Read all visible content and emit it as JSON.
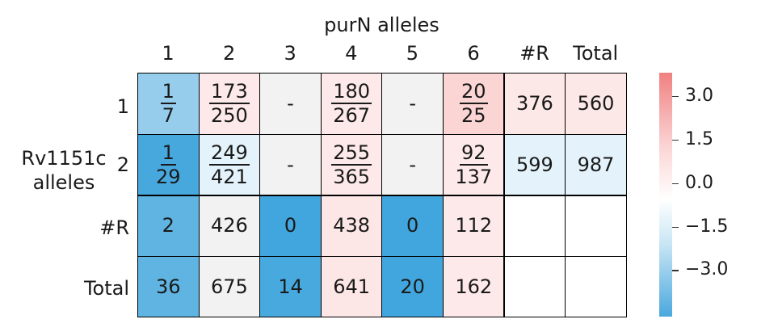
{
  "chart_data": {
    "type": "heatmap",
    "title": "purN alleles",
    "ylabel": "Rv1151c alleles",
    "columns": [
      "1",
      "2",
      "3",
      "4",
      "5",
      "6",
      "#R",
      "Total"
    ],
    "rows": [
      "1",
      "2",
      "#R",
      "Total"
    ],
    "cells": [
      [
        {
          "num": "1",
          "den": "7",
          "color": "#96cdec"
        },
        {
          "num": "173",
          "den": "250",
          "color": "#fde9e9"
        },
        {
          "text": "-",
          "color": "#f2f2f2"
        },
        {
          "num": "180",
          "den": "267",
          "color": "#fde9e9"
        },
        {
          "text": "-",
          "color": "#f2f2f2"
        },
        {
          "num": "20",
          "den": "25",
          "color": "#fbd4d4"
        },
        {
          "text": "376",
          "color": "#fde8e8"
        },
        {
          "text": "560",
          "color": "#fde8e8"
        }
      ],
      [
        {
          "num": "1",
          "den": "29",
          "color": "#47a8de"
        },
        {
          "num": "249",
          "den": "421",
          "color": "#e4f3fb"
        },
        {
          "text": "-",
          "color": "#f2f2f2"
        },
        {
          "num": "255",
          "den": "365",
          "color": "#fde9e9"
        },
        {
          "text": "-",
          "color": "#f2f2f2"
        },
        {
          "num": "92",
          "den": "137",
          "color": "#fde9e9"
        },
        {
          "text": "599",
          "color": "#e4f3fb"
        },
        {
          "text": "987",
          "color": "#e4f3fb"
        }
      ],
      [
        {
          "text": "2",
          "color": "#60b4e2"
        },
        {
          "text": "426",
          "color": "#f2f2f2"
        },
        {
          "text": "0",
          "color": "#42a6de"
        },
        {
          "text": "438",
          "color": "#fde6e6"
        },
        {
          "text": "0",
          "color": "#42a6de"
        },
        {
          "text": "112",
          "color": "#fde9e9"
        },
        {
          "text": "",
          "color": "#ffffff"
        },
        {
          "text": "",
          "color": "#ffffff"
        }
      ],
      [
        {
          "text": "36",
          "color": "#60b4e2"
        },
        {
          "text": "675",
          "color": "#f2f2f2"
        },
        {
          "text": "14",
          "color": "#48a9de"
        },
        {
          "text": "641",
          "color": "#fde6e6"
        },
        {
          "text": "20",
          "color": "#42a6de"
        },
        {
          "text": "162",
          "color": "#fde9e9"
        },
        {
          "text": "",
          "color": "#ffffff"
        },
        {
          "text": "",
          "color": "#ffffff"
        }
      ]
    ],
    "colorbar": {
      "ticks": [
        "3.0",
        "1.5",
        "0.0",
        "−1.5",
        "−3.0"
      ],
      "tick_values": [
        3.0,
        1.5,
        0.0,
        -1.5,
        -3.0
      ],
      "range": [
        -4.6,
        3.8
      ]
    }
  }
}
